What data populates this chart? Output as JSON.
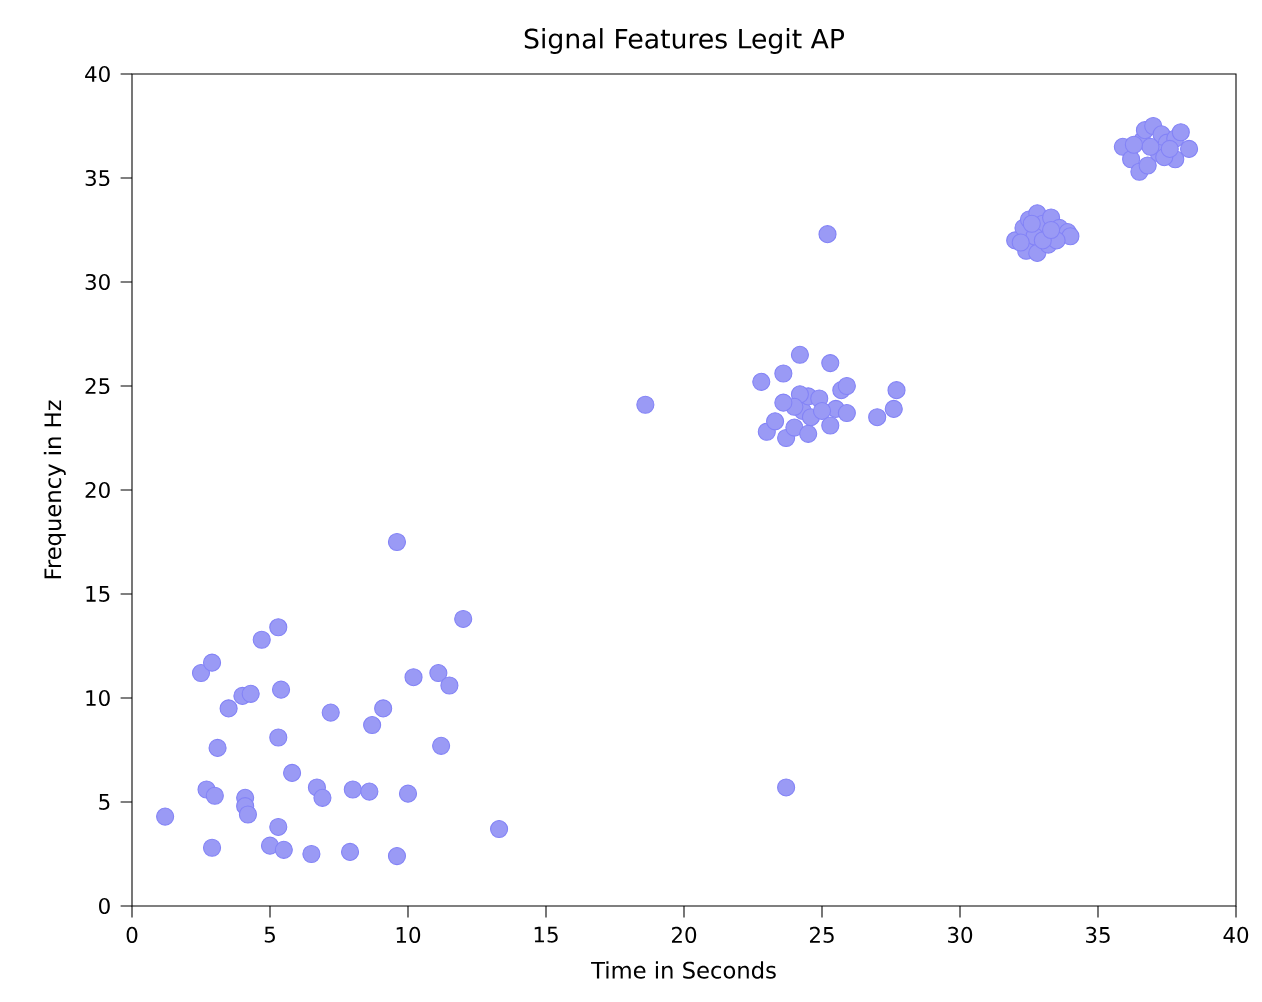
{
  "chart_data": {
    "type": "scatter",
    "title": "Signal Features Legit AP",
    "xlabel": "Time in Seconds",
    "ylabel": "Frequency in Hz",
    "xlim": [
      0,
      40
    ],
    "ylim": [
      0,
      40
    ],
    "xticks": [
      0,
      5,
      10,
      15,
      20,
      25,
      30,
      35,
      40
    ],
    "yticks": [
      0,
      5,
      10,
      15,
      20,
      25,
      30,
      35,
      40
    ],
    "marker": "circle",
    "series": [
      {
        "color": "#9a9af5",
        "x": [
          1.2,
          2.5,
          2.9,
          2.7,
          3.0,
          2.9,
          3.1,
          3.5,
          4.0,
          4.3,
          4.1,
          4.1,
          4.2,
          4.7,
          5.0,
          5.3,
          5.3,
          5.3,
          5.4,
          5.5,
          5.8,
          6.5,
          6.7,
          6.9,
          7.2,
          7.9,
          8.0,
          8.6,
          8.7,
          9.1,
          9.6,
          9.6,
          10.0,
          10.2,
          11.1,
          11.2,
          11.5,
          12.0,
          13.3,
          18.6,
          25.2,
          23.7,
          22.8,
          23.6,
          24.2,
          25.3,
          23.0,
          23.3,
          23.7,
          24.0,
          24.3,
          24.5,
          24.2,
          24.9,
          25.7,
          25.9,
          25.5,
          25.3,
          24.5,
          25.9,
          27.0,
          27.6,
          27.7,
          24.0,
          24.6,
          25.0,
          23.6,
          32.0,
          32.3,
          32.5,
          32.8,
          33.0,
          33.3,
          33.6,
          33.9,
          34.0,
          32.4,
          32.8,
          33.2,
          33.5,
          32.7,
          33.0,
          32.2,
          33.3,
          32.6,
          35.9,
          36.2,
          36.5,
          36.8,
          36.6,
          36.7,
          37.0,
          37.3,
          37.5,
          37.8,
          38.0,
          38.3,
          37.8,
          37.2,
          36.9,
          37.4,
          36.3,
          37.6
        ],
        "values": [
          4.3,
          11.2,
          11.7,
          5.6,
          5.3,
          2.8,
          7.6,
          9.5,
          10.1,
          10.2,
          5.2,
          4.8,
          4.4,
          12.8,
          2.9,
          13.4,
          3.8,
          8.1,
          10.4,
          2.7,
          6.4,
          2.5,
          5.7,
          5.2,
          9.3,
          2.6,
          5.6,
          5.5,
          8.7,
          9.5,
          2.4,
          17.5,
          5.4,
          11.0,
          11.2,
          7.7,
          10.6,
          13.8,
          3.7,
          24.1,
          32.3,
          5.7,
          25.2,
          25.6,
          26.5,
          26.1,
          22.8,
          23.3,
          22.5,
          23.0,
          23.8,
          24.5,
          24.6,
          24.4,
          24.8,
          25.0,
          23.9,
          23.1,
          22.7,
          23.7,
          23.5,
          23.9,
          24.8,
          24.0,
          23.5,
          23.8,
          24.2,
          32.0,
          32.6,
          33.0,
          33.3,
          32.8,
          33.1,
          32.6,
          32.4,
          32.2,
          31.5,
          31.4,
          31.8,
          32.0,
          32.2,
          32.0,
          31.9,
          32.5,
          32.8,
          36.5,
          35.9,
          35.3,
          35.6,
          36.8,
          37.3,
          37.5,
          37.1,
          36.7,
          36.9,
          37.2,
          36.4,
          35.9,
          36.2,
          36.5,
          36.0,
          36.6,
          36.4
        ]
      }
    ]
  }
}
